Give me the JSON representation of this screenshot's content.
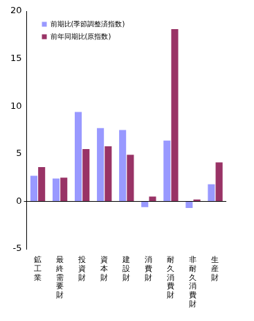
{
  "chart_data": {
    "type": "bar",
    "categories": [
      "鉱工業",
      "最終需要財",
      "投資財",
      "資本財",
      "建設財",
      "消費財",
      "耐久消費財",
      "非耐久消費財",
      "生産財"
    ],
    "series": [
      {
        "name": "前期比(季節調整済指数)",
        "color": "#9999ff",
        "values": [
          2.7,
          2.4,
          9.4,
          7.7,
          7.5,
          -0.6,
          6.4,
          -0.7,
          1.8
        ]
      },
      {
        "name": "前年同期比(原指数)",
        "color": "#993366",
        "values": [
          3.6,
          2.5,
          5.5,
          5.8,
          4.9,
          0.5,
          18.1,
          0.2,
          4.1
        ]
      }
    ],
    "ylim": [
      -5,
      20
    ],
    "yticks": [
      -5,
      0,
      5,
      10,
      15,
      20
    ],
    "grid": false,
    "legend": "upper left"
  }
}
